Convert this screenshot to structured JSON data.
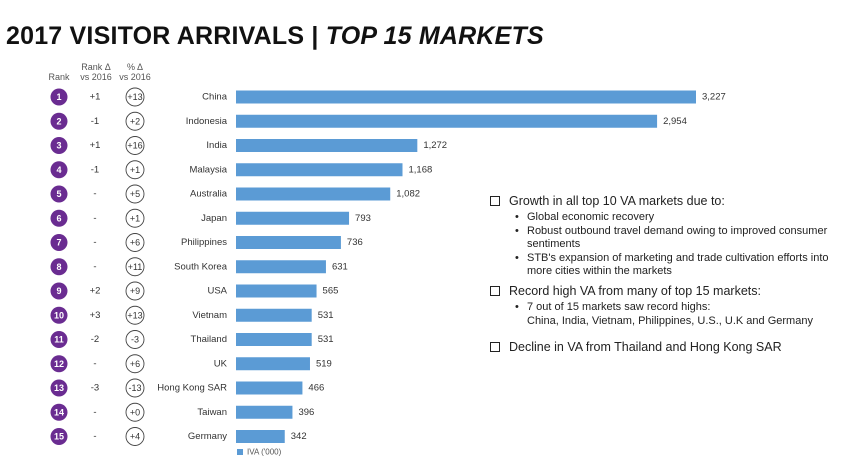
{
  "title": {
    "main": "2017 VISITOR ARRIVALS | ",
    "italic": "TOP 15 MARKETS"
  },
  "headers": {
    "rank": "Rank",
    "rank_delta": "Rank Δ",
    "rank_delta_sub": "vs 2016",
    "pct_delta": "% Δ",
    "pct_delta_sub": "vs 2016"
  },
  "colors": {
    "bar": "#5b9bd5",
    "rank_circle": "#6a2c91"
  },
  "chart_data": {
    "type": "bar",
    "orientation": "horizontal",
    "categories": [
      "China",
      "Indonesia",
      "India",
      "Malaysia",
      "Australia",
      "Japan",
      "Philippines",
      "South Korea",
      "USA",
      "Vietnam",
      "Thailand",
      "UK",
      "Hong Kong SAR",
      "Taiwan",
      "Germany"
    ],
    "series": [
      {
        "name": "IVA ('000)",
        "values": [
          3227,
          2954,
          1272,
          1168,
          1082,
          793,
          736,
          631,
          565,
          531,
          531,
          519,
          466,
          396,
          342
        ]
      }
    ],
    "data_labels": [
      "3,227",
      "2,954",
      "1,272",
      "1,168",
      "1,082",
      "793",
      "736",
      "631",
      "565",
      "531",
      "531",
      "519",
      "466",
      "396",
      "342"
    ],
    "rank": [
      "1",
      "2",
      "3",
      "4",
      "5",
      "6",
      "7",
      "8",
      "9",
      "10",
      "11",
      "12",
      "13",
      "14",
      "15"
    ],
    "rank_change": [
      "+1",
      "-1",
      "+1",
      "-1",
      "-",
      "-",
      "-",
      "-",
      "+2",
      "+3",
      "-2",
      "-",
      "-3",
      "-",
      "-"
    ],
    "pct_change": [
      "+13",
      "+2",
      "+16",
      "+1",
      "+5",
      "+1",
      "+6",
      "+11",
      "+9",
      "+13",
      "-3",
      "+6",
      "-13",
      "+0",
      "+4"
    ],
    "legend": "IVA ('000)",
    "legend_position": "bottom-left",
    "grid": false
  },
  "notes": {
    "s1": {
      "heading": "Growth in all top 10 VA markets due to:",
      "items": [
        "Global economic recovery",
        "Robust outbound travel demand owing to improved consumer sentiments",
        "STB's expansion of marketing and trade cultivation efforts into more cities within the markets"
      ]
    },
    "s2": {
      "heading": "Record high VA from many of top 15 markets:",
      "items": [
        "7 out of 15 markets saw record highs:"
      ],
      "sub": "China, India, Vietnam, Philippines, U.S., U.K and Germany"
    },
    "s3": {
      "heading": "Decline in VA from Thailand and Hong Kong SAR"
    }
  }
}
